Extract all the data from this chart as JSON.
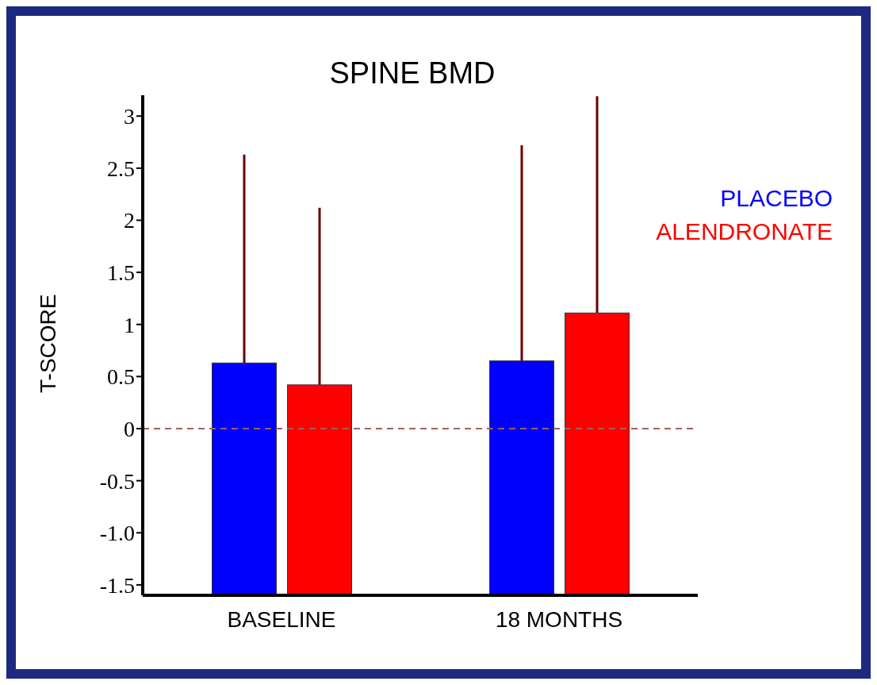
{
  "chart_data": {
    "type": "bar",
    "title": "SPINE BMD",
    "ylabel": "T-SCORE",
    "categories": [
      "BASELINE",
      "18 MONTHS"
    ],
    "series": [
      {
        "name": "PLACEBO",
        "color": "#0000ff",
        "values": [
          2.23,
          2.25
        ],
        "base": [
          -1.6,
          -1.6
        ],
        "errors": [
          [
            0.63,
            2.63
          ],
          [
            0.65,
            2.72
          ]
        ]
      },
      {
        "name": "ALENDRONATE",
        "color": "#ff0000",
        "values": [
          2.02,
          2.71
        ],
        "base": [
          -1.6,
          -1.6
        ],
        "errors": [
          [
            0.42,
            2.12
          ],
          [
            1.11,
            3.19
          ]
        ]
      }
    ],
    "ylim": [
      -1.6,
      3.2
    ],
    "yticks": [
      {
        "value": -1.5,
        "label": "-1.5"
      },
      {
        "value": -1,
        "label": "-1.0"
      },
      -0.5,
      0,
      0.5,
      1,
      1.5,
      2,
      2.5,
      3
    ],
    "ref_lines": [
      {
        "axis": "y",
        "value": 0,
        "label": null,
        "color": "#a06060",
        "line_style": "dashed"
      }
    ],
    "grid": false
  }
}
